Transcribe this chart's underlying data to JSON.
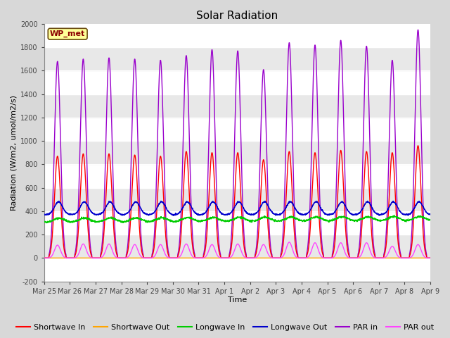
{
  "title": "Solar Radiation",
  "xlabel": "Time",
  "ylabel": "Radiation (W/m2, umol/m2/s)",
  "ylim": [
    -200,
    2000
  ],
  "yticks": [
    -200,
    0,
    200,
    400,
    600,
    800,
    1000,
    1200,
    1400,
    1600,
    1800,
    2000
  ],
  "background_color": "#d8d8d8",
  "plot_bg_color": "#d8d8d8",
  "inner_bg_color": "#e8e8e8",
  "grid_color": "#ffffff",
  "station_label": "WP_met",
  "n_days": 15,
  "day_labels": [
    "Mar 25",
    "Mar 26",
    "Mar 27",
    "Mar 28",
    "Mar 29",
    "Mar 30",
    "Mar 31",
    "Apr 1",
    "Apr 2",
    "Apr 3",
    "Apr 4",
    "Apr 5",
    "Apr 6",
    "Apr 7",
    "Apr 8",
    "Apr 9"
  ],
  "series": {
    "Shortwave In": {
      "color": "#ff0000",
      "lw": 1.0
    },
    "Shortwave Out": {
      "color": "#ffa500",
      "lw": 1.0
    },
    "Longwave In": {
      "color": "#00cc00",
      "lw": 1.0
    },
    "Longwave Out": {
      "color": "#0000cc",
      "lw": 1.0
    },
    "PAR in": {
      "color": "#9900cc",
      "lw": 1.0
    },
    "PAR out": {
      "color": "#ff44ff",
      "lw": 1.0
    }
  },
  "sw_in_peaks": [
    870,
    890,
    890,
    880,
    870,
    910,
    900,
    900,
    840,
    910,
    900,
    920,
    910,
    900,
    960
  ],
  "par_in_peaks": [
    1680,
    1700,
    1710,
    1700,
    1690,
    1730,
    1780,
    1770,
    1610,
    1840,
    1820,
    1860,
    1810,
    1690,
    1950
  ],
  "par_out_peaks": [
    110,
    120,
    120,
    115,
    115,
    120,
    115,
    120,
    115,
    135,
    130,
    130,
    130,
    100,
    115
  ],
  "lw_in_base": 305,
  "lw_out_base": 370,
  "title_fontsize": 11,
  "axis_label_fontsize": 8,
  "tick_fontsize": 7,
  "legend_fontsize": 8
}
